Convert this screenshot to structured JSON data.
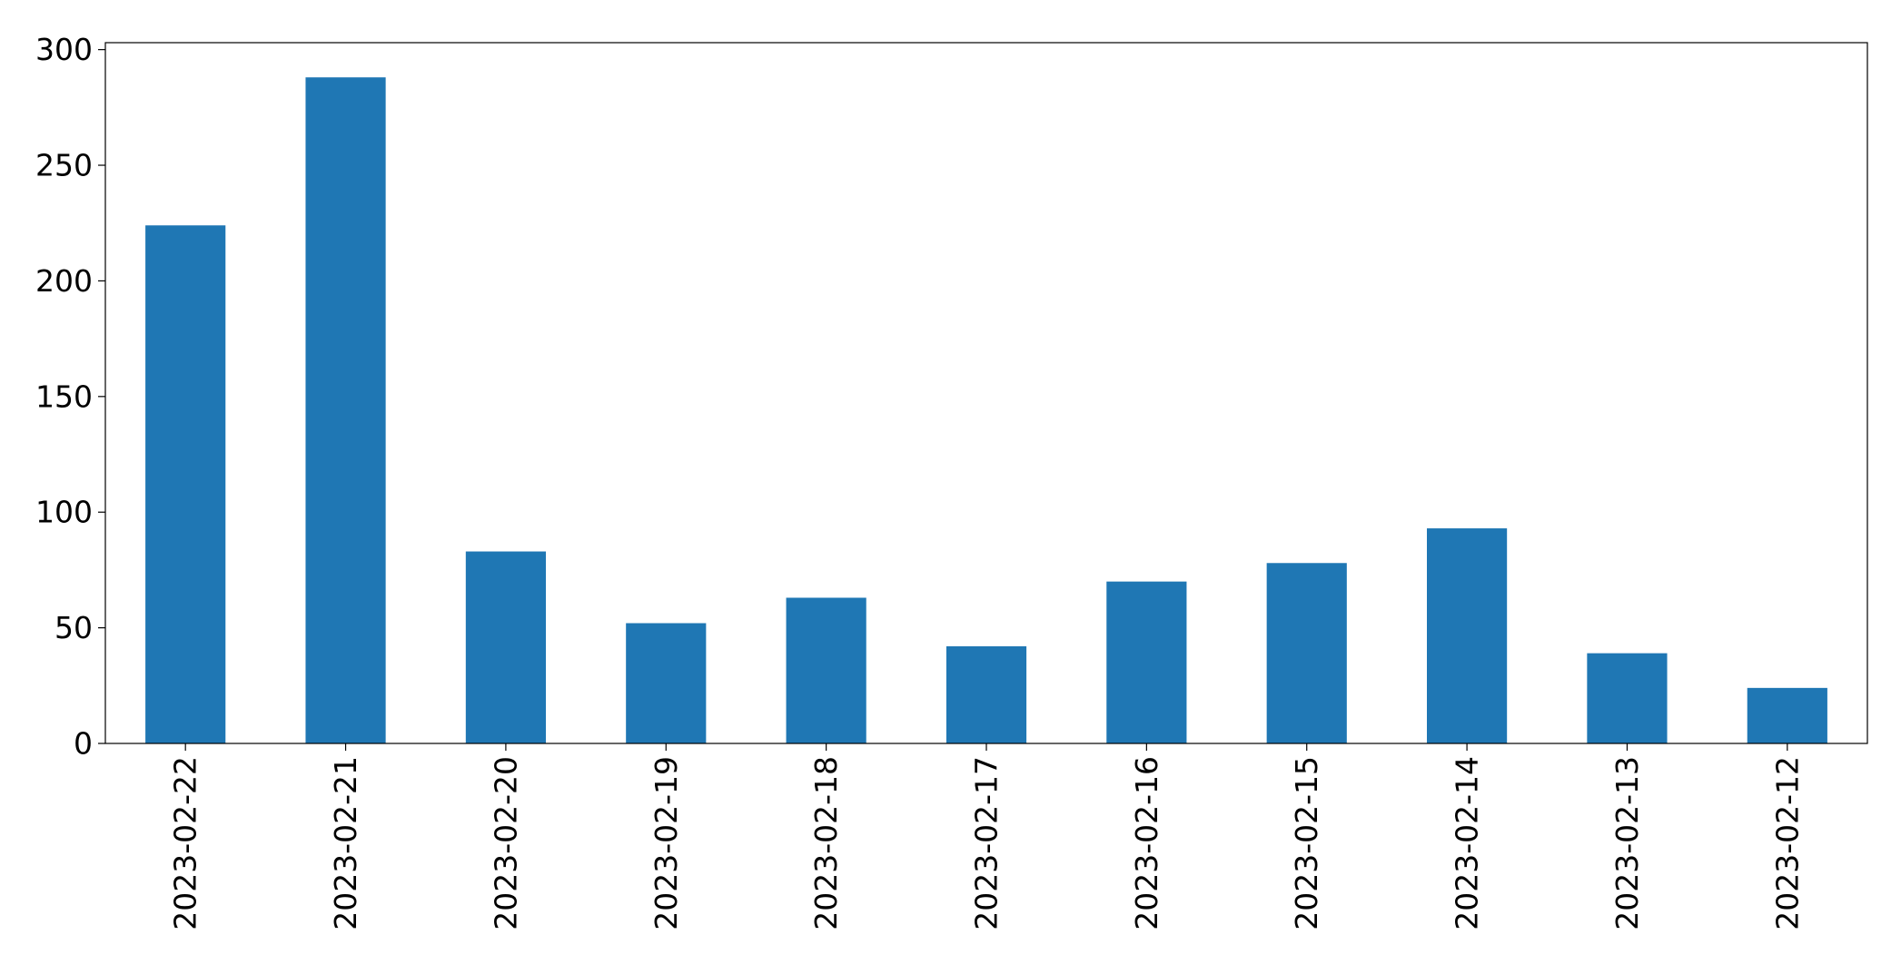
{
  "chart_data": {
    "type": "bar",
    "title": "",
    "xlabel": "",
    "ylabel": "",
    "categories": [
      "2023-02-22",
      "2023-02-21",
      "2023-02-20",
      "2023-02-19",
      "2023-02-18",
      "2023-02-17",
      "2023-02-16",
      "2023-02-15",
      "2023-02-14",
      "2023-02-13",
      "2023-02-12"
    ],
    "values": [
      224,
      288,
      83,
      52,
      63,
      42,
      70,
      78,
      93,
      39,
      24
    ],
    "ylim": [
      0,
      303
    ],
    "yticks": [
      0,
      50,
      100,
      150,
      200,
      250,
      300
    ],
    "bar_color": "#1f77b4",
    "grid": false,
    "legend": "none"
  }
}
